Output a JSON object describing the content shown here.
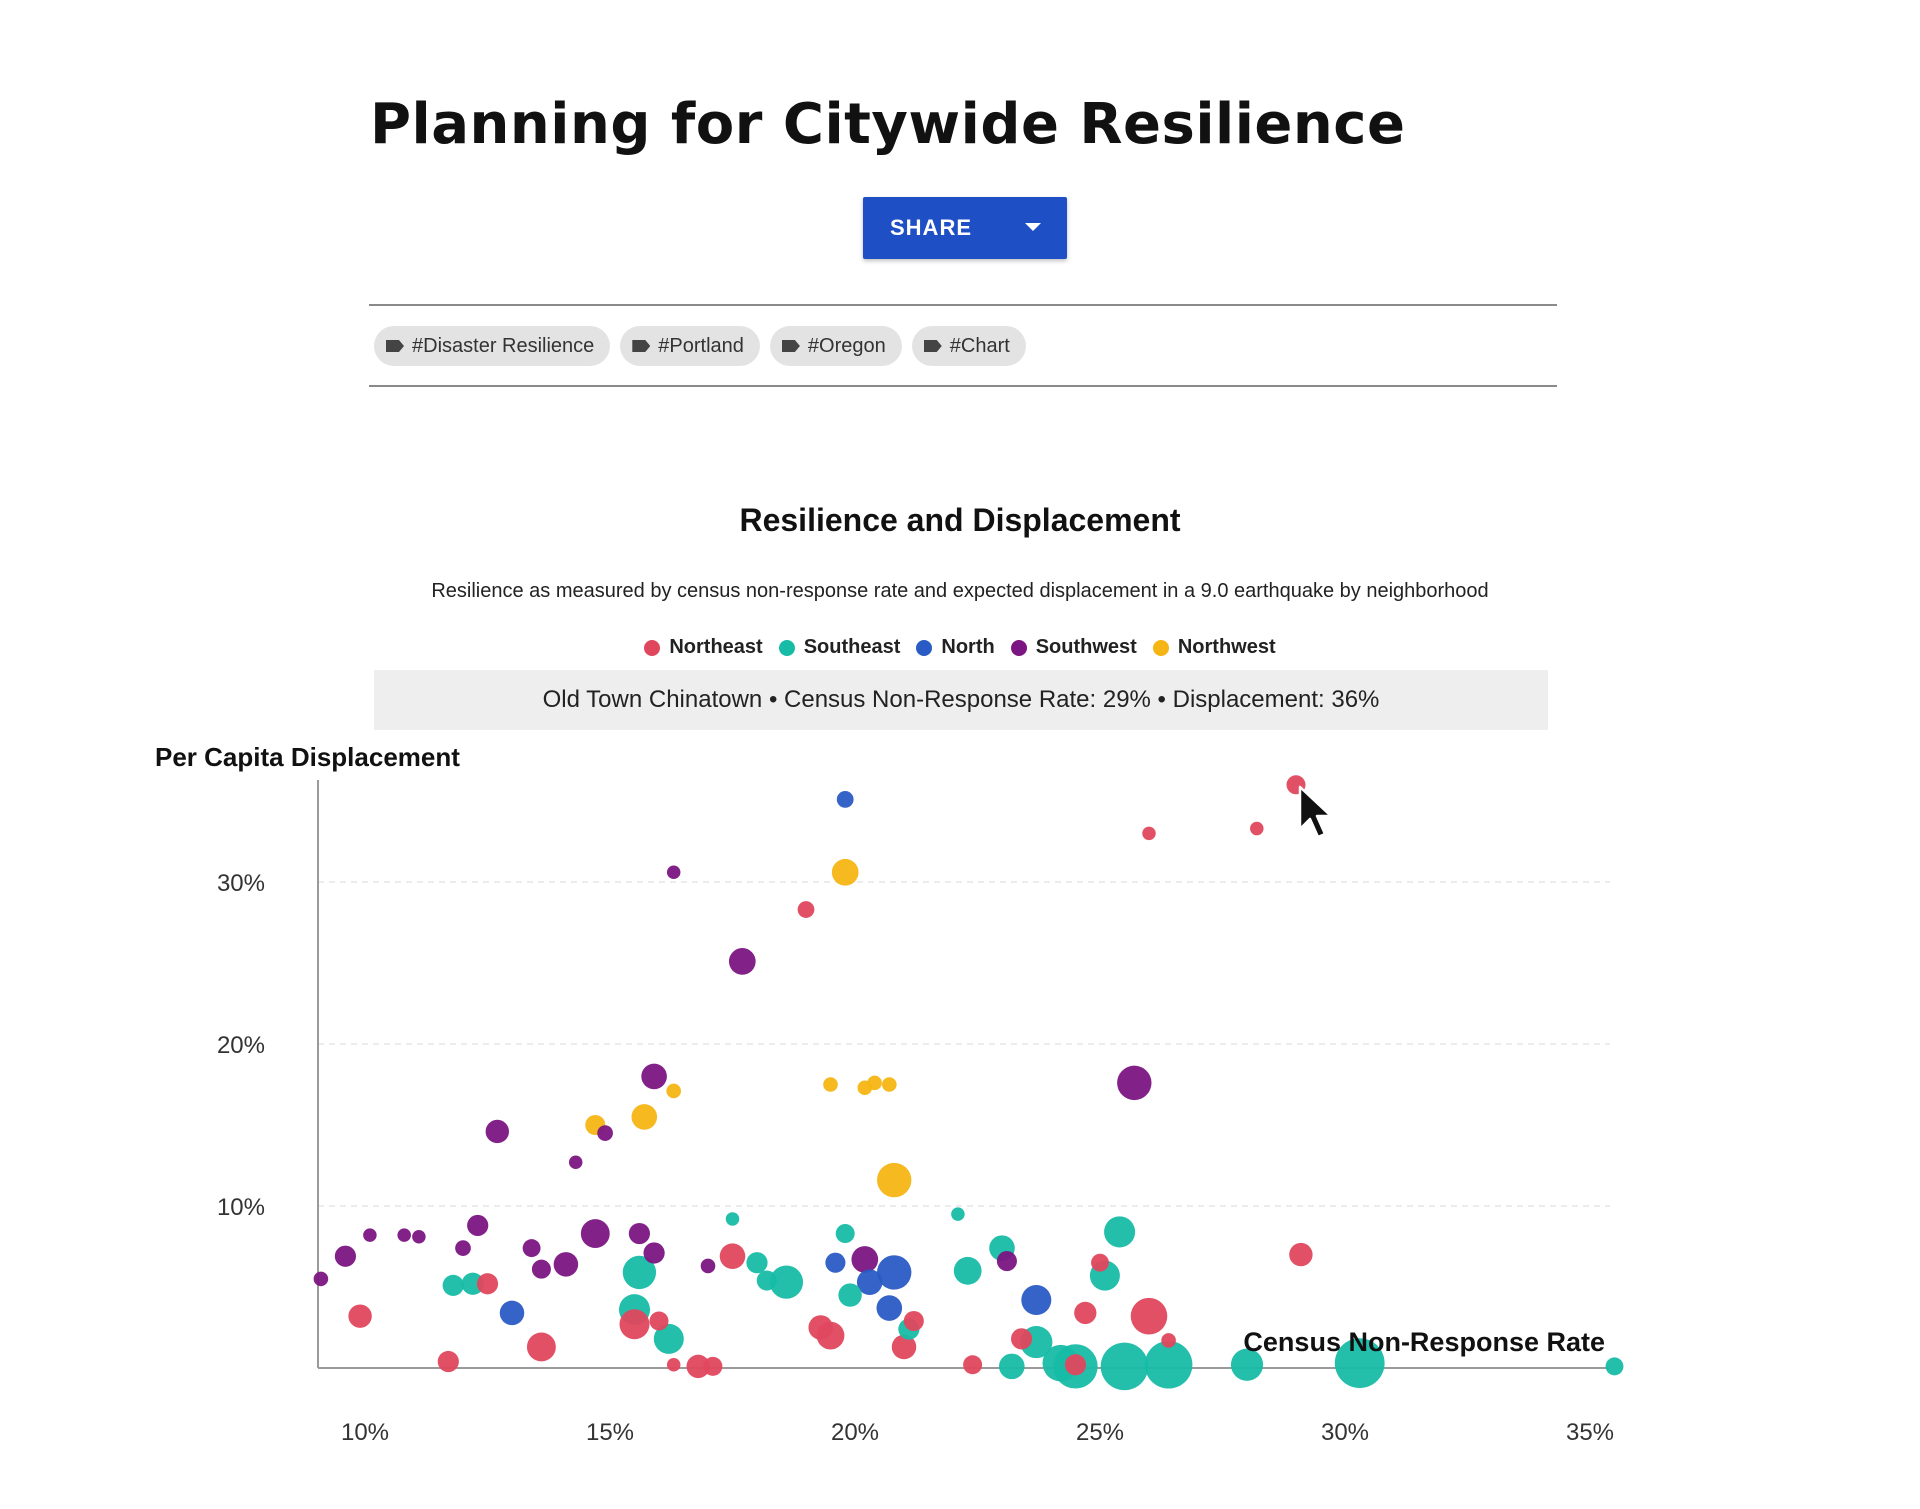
{
  "page": {
    "title": "Planning for Citywide Resilience",
    "share_label": "SHARE",
    "tags": [
      "#Disaster Resilience",
      "#Portland",
      "#Oregon",
      "#Chart"
    ]
  },
  "tooltip": "Old Town Chinatown • Census Non-Response Rate: 29% • Displacement: 36%",
  "colors": {
    "Northeast": "#e0475e",
    "Southeast": "#17bca7",
    "North": "#2a5bc4",
    "Southwest": "#7b1582",
    "Northwest": "#f5b513"
  },
  "chart_data": {
    "type": "scatter",
    "title": "Resilience and Displacement",
    "subtitle": "Resilience as measured by census non-response rate and expected displacement in a 9.0 earthquake by neighborhood",
    "xlabel": "Census Non-Response Rate",
    "ylabel": "Per Capita Displacement",
    "x_ticks": [
      "10%",
      "15%",
      "20%",
      "25%",
      "30%",
      "35%"
    ],
    "y_ticks": [
      "10%",
      "20%",
      "30%"
    ],
    "xlim": [
      9,
      35.5
    ],
    "ylim": [
      0,
      36
    ],
    "legend": [
      "Northeast",
      "Southeast",
      "North",
      "Southwest",
      "Northwest"
    ],
    "legend_position": "top-center",
    "grid": "horizontal dashed",
    "series": [
      {
        "name": "Northeast",
        "points": [
          [
            29,
            36,
            1
          ],
          [
            26,
            33,
            0.5
          ],
          [
            28.2,
            33.3,
            0.5
          ],
          [
            19,
            28.3,
            0.8
          ],
          [
            29.1,
            7,
            1.4
          ],
          [
            26,
            3.2,
            2.6
          ],
          [
            25,
            6.5,
            0.9
          ],
          [
            24.7,
            3.4,
            1.3
          ],
          [
            23.4,
            1.8,
            1.2
          ],
          [
            22.4,
            0.2,
            1
          ],
          [
            21.2,
            2.9,
            1.1
          ],
          [
            21,
            1.3,
            1.5
          ],
          [
            19.5,
            2,
            1.8
          ],
          [
            19.3,
            2.5,
            1.5
          ],
          [
            17.5,
            6.9,
            1.6
          ],
          [
            17.1,
            0.1,
            1
          ],
          [
            16.8,
            0.1,
            1.4
          ],
          [
            16,
            2.9,
            1
          ],
          [
            16.3,
            0.2,
            0.5
          ],
          [
            15.5,
            2.7,
            2
          ],
          [
            13.6,
            1.3,
            1.9
          ],
          [
            11.7,
            0.4,
            1.2
          ],
          [
            9.9,
            3.2,
            1.4
          ],
          [
            12.5,
            5.2,
            1.2
          ],
          [
            26.4,
            1.7,
            0.6
          ],
          [
            24.5,
            0.2,
            1.2
          ]
        ]
      },
      {
        "name": "Southeast",
        "points": [
          [
            30.3,
            0.3,
            3.8
          ],
          [
            35.5,
            0.1,
            0.9
          ],
          [
            28,
            0.2,
            2.2
          ],
          [
            26.4,
            0.2,
            3.6
          ],
          [
            25.5,
            0.1,
            3.6
          ],
          [
            24.5,
            0.1,
            3.3
          ],
          [
            24.2,
            0.3,
            2.6
          ],
          [
            23.7,
            1.6,
            2.2
          ],
          [
            23.2,
            0.1,
            1.6
          ],
          [
            25.4,
            8.4,
            2.1
          ],
          [
            25.1,
            5.7,
            2
          ],
          [
            23,
            7.4,
            1.6
          ],
          [
            22.3,
            6,
            1.8
          ],
          [
            22.1,
            9.5,
            0.5
          ],
          [
            19.8,
            8.3,
            1
          ],
          [
            19.9,
            4.5,
            1.4
          ],
          [
            21.1,
            2.4,
            1.2
          ],
          [
            18.6,
            5.3,
            2.3
          ],
          [
            18.2,
            5.4,
            1.1
          ],
          [
            18,
            6.5,
            1.2
          ],
          [
            17.5,
            9.2,
            0.5
          ],
          [
            16.2,
            1.8,
            2
          ],
          [
            15.6,
            5.9,
            2.3
          ],
          [
            15.5,
            3.6,
            2.1
          ],
          [
            12.2,
            5.2,
            1.3
          ],
          [
            11.8,
            5.1,
            1.2
          ]
        ]
      },
      {
        "name": "North",
        "points": [
          [
            19.8,
            35.1,
            0.8
          ],
          [
            20.8,
            5.9,
            2.4
          ],
          [
            20.3,
            5.3,
            1.6
          ],
          [
            19.6,
            6.5,
            1.1
          ],
          [
            20.7,
            3.7,
            1.6
          ],
          [
            23.7,
            4.2,
            2
          ],
          [
            13,
            3.4,
            1.5
          ]
        ]
      },
      {
        "name": "Southwest",
        "points": [
          [
            25.7,
            17.6,
            2.4
          ],
          [
            17.7,
            25.1,
            1.7
          ],
          [
            16.3,
            30.6,
            0.5
          ],
          [
            15.9,
            18,
            1.6
          ],
          [
            14.9,
            14.5,
            0.7
          ],
          [
            14.3,
            12.7,
            0.5
          ],
          [
            12.7,
            14.6,
            1.4
          ],
          [
            14.7,
            8.3,
            1.9
          ],
          [
            15.6,
            8.3,
            1.2
          ],
          [
            15.9,
            7.1,
            1.2
          ],
          [
            14.1,
            6.4,
            1.5
          ],
          [
            13.6,
            6.1,
            1
          ],
          [
            13.4,
            7.4,
            0.9
          ],
          [
            12.3,
            8.8,
            1.2
          ],
          [
            12,
            7.4,
            0.7
          ],
          [
            11.1,
            8.1,
            0.5
          ],
          [
            10.8,
            8.2,
            0.5
          ],
          [
            10.1,
            8.2,
            0.5
          ],
          [
            9.6,
            6.9,
            1.2
          ],
          [
            9.1,
            5.5,
            0.6
          ],
          [
            17,
            6.3,
            0.6
          ],
          [
            20.2,
            6.7,
            1.7
          ],
          [
            23.1,
            6.6,
            1.1
          ]
        ]
      },
      {
        "name": "Northwest",
        "points": [
          [
            19.8,
            30.6,
            1.7
          ],
          [
            20.8,
            11.6,
            2.4
          ],
          [
            15.7,
            15.5,
            1.6
          ],
          [
            14.7,
            15,
            1.1
          ],
          [
            16.3,
            17.1,
            0.6
          ],
          [
            19.5,
            17.5,
            0.6
          ],
          [
            20.2,
            17.3,
            0.6
          ],
          [
            20.4,
            17.6,
            0.6
          ],
          [
            20.7,
            17.5,
            0.6
          ]
        ]
      }
    ]
  }
}
